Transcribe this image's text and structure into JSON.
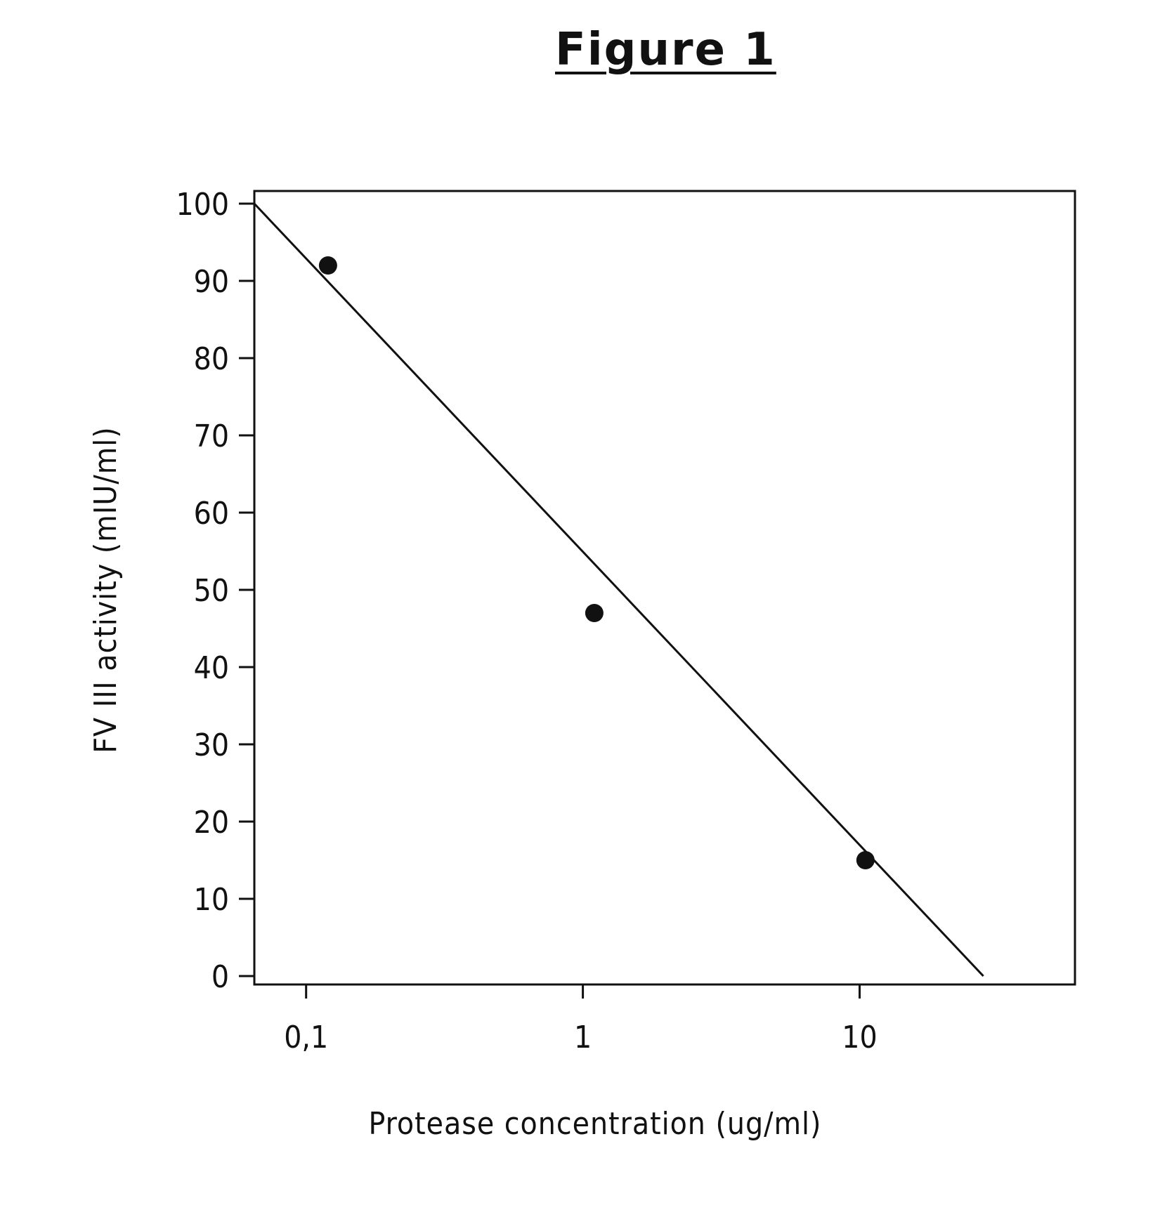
{
  "figure": {
    "title": "Figure 1"
  },
  "chart_data": {
    "type": "scatter",
    "title": "Figure 1",
    "xlabel": "Protease concentration (ug/ml)",
    "ylabel": "FV III activity (mIU/ml)",
    "x_scale": "log",
    "xlim": [
      0.065,
      60
    ],
    "ylim": [
      0,
      100
    ],
    "x_ticks": [
      0.1,
      1,
      10
    ],
    "x_tick_labels": [
      "0,1",
      "1",
      "10"
    ],
    "y_ticks": [
      0,
      10,
      20,
      30,
      40,
      50,
      60,
      70,
      80,
      90,
      100
    ],
    "y_tick_labels": [
      "0",
      "10",
      "20",
      "30",
      "40",
      "50",
      "60",
      "70",
      "80",
      "90",
      "100"
    ],
    "grid": false,
    "legend": "none",
    "series": [
      {
        "kind": "points",
        "x": [
          0.12,
          1.1,
          10.5
        ],
        "y": [
          92,
          47,
          15
        ]
      },
      {
        "kind": "fit-line",
        "x": [
          0.065,
          28
        ],
        "y": [
          100,
          0
        ]
      }
    ]
  }
}
